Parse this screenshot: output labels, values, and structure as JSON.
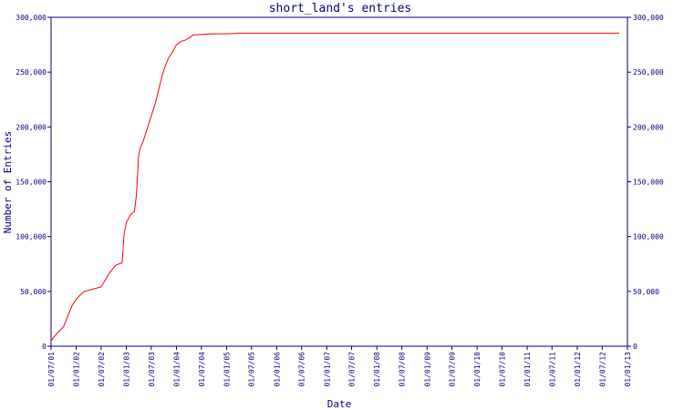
{
  "chart_data": {
    "type": "line",
    "title": "short_land's entries",
    "xlabel": "Date",
    "ylabel": "Number of Entries",
    "ylim": [
      0,
      300000
    ],
    "y_ticks": [
      0,
      50000,
      100000,
      150000,
      200000,
      250000,
      300000
    ],
    "y_tick_labels": [
      "0",
      "50,000",
      "100,000",
      "150,000",
      "200,000",
      "250,000",
      "300,000"
    ],
    "right_axis": true,
    "grid": false,
    "x_ticks": [
      "01/07/01",
      "01/01/02",
      "01/07/02",
      "01/01/03",
      "01/07/03",
      "01/01/04",
      "01/07/04",
      "01/01/05",
      "01/07/05",
      "01/01/06",
      "01/07/06",
      "01/01/07",
      "01/07/07",
      "01/01/08",
      "01/07/08",
      "01/01/09",
      "01/07/09",
      "01/01/10",
      "01/07/10",
      "01/01/11",
      "01/07/11",
      "01/01/12",
      "01/07/12",
      "01/01/13"
    ],
    "series": [
      {
        "color": "#ff0000",
        "x": [
          "01/07/01",
          "15/08/01",
          "01/10/01",
          "01/11/01",
          "01/12/01",
          "01/01/02",
          "01/02/02",
          "01/03/02",
          "01/05/02",
          "01/07/02",
          "01/09/02",
          "15/10/02",
          "01/12/02",
          "15/12/02",
          "01/01/03",
          "01/02/03",
          "01/03/03",
          "15/03/03",
          "01/04/03",
          "15/04/03",
          "01/05/03",
          "01/06/03",
          "01/07/03",
          "01/08/03",
          "01/09/03",
          "01/10/03",
          "01/11/03",
          "01/12/03",
          "01/01/04",
          "01/02/04",
          "01/03/04",
          "01/04/04",
          "01/05/04",
          "01/06/04",
          "01/07/04",
          "01/10/04",
          "01/01/05",
          "01/04/05",
          "01/07/05",
          "01/01/06",
          "01/07/06",
          "01/01/07",
          "01/07/07",
          "01/01/08",
          "01/07/08",
          "01/01/09",
          "01/07/09",
          "01/01/10",
          "01/07/10",
          "01/01/11",
          "01/07/11",
          "01/01/12",
          "01/07/12",
          "01/11/12"
        ],
        "values": [
          5000,
          12000,
          18000,
          28000,
          37000,
          43000,
          47000,
          50000,
          52000,
          54000,
          67000,
          74000,
          76000,
          102000,
          113000,
          120000,
          123000,
          138000,
          175000,
          182000,
          186000,
          198000,
          210000,
          222000,
          238000,
          252000,
          262000,
          268000,
          275000,
          278000,
          279000,
          281000,
          284000,
          284000,
          284500,
          285000,
          285000,
          285500,
          285500,
          285500,
          285500,
          285500,
          285500,
          285500,
          285500,
          285500,
          285500,
          285500,
          285500,
          285500,
          285500,
          285500,
          285500,
          285500
        ]
      }
    ]
  }
}
